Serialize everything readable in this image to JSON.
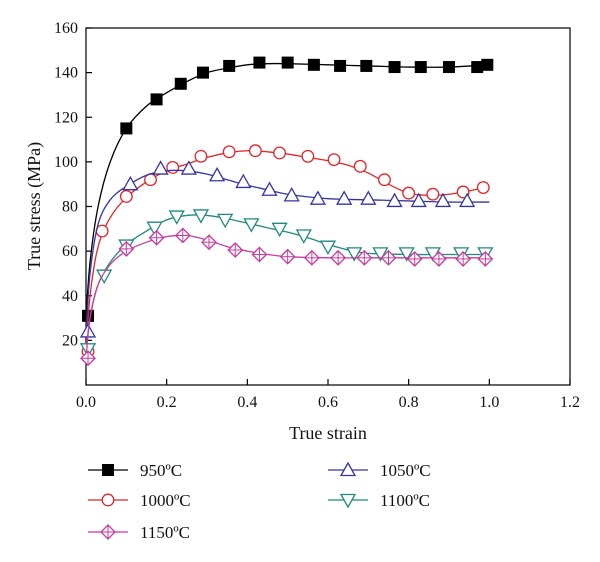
{
  "chart_data": {
    "type": "line",
    "xlabel": "True strain",
    "ylabel": "True stress (MPa)",
    "xlim": [
      0.0,
      1.2
    ],
    "ylim": [
      0,
      160
    ],
    "xticks": [
      "0.0",
      "0.2",
      "0.4",
      "0.6",
      "0.8",
      "1.0",
      "1.2"
    ],
    "yticks": [
      "20",
      "40",
      "60",
      "80",
      "100",
      "120",
      "140",
      "160"
    ],
    "grid": false,
    "legend_position": "bottom",
    "series": [
      {
        "name": "950ºC",
        "color": "#000000",
        "marker": "filled-square",
        "curve": [
          [
            0,
            30
          ],
          [
            0.01,
            55
          ],
          [
            0.03,
            80
          ],
          [
            0.06,
            100
          ],
          [
            0.1,
            115
          ],
          [
            0.15,
            125
          ],
          [
            0.2,
            131
          ],
          [
            0.25,
            136
          ],
          [
            0.3,
            140
          ],
          [
            0.35,
            142
          ],
          [
            0.4,
            143.5
          ],
          [
            0.45,
            144
          ],
          [
            0.5,
            144
          ],
          [
            0.6,
            143.5
          ],
          [
            0.7,
            143
          ],
          [
            0.8,
            142.5
          ],
          [
            0.9,
            142.5
          ],
          [
            1.0,
            143.5
          ]
        ],
        "points": [
          [
            0.005,
            31
          ],
          [
            0.1,
            115
          ],
          [
            0.175,
            128
          ],
          [
            0.235,
            135
          ],
          [
            0.29,
            140
          ],
          [
            0.355,
            143
          ],
          [
            0.43,
            144.5
          ],
          [
            0.5,
            144.5
          ],
          [
            0.565,
            143.5
          ],
          [
            0.63,
            143
          ],
          [
            0.695,
            143
          ],
          [
            0.765,
            142.5
          ],
          [
            0.83,
            142.5
          ],
          [
            0.9,
            142.5
          ],
          [
            0.97,
            142.5
          ],
          [
            0.995,
            143.5
          ]
        ]
      },
      {
        "name": "1000ºC",
        "color": "#e0262b",
        "marker": "open-circle",
        "curve": [
          [
            0,
            15
          ],
          [
            0.01,
            40
          ],
          [
            0.03,
            62
          ],
          [
            0.06,
            75
          ],
          [
            0.1,
            84
          ],
          [
            0.15,
            91
          ],
          [
            0.2,
            96
          ],
          [
            0.25,
            99
          ],
          [
            0.3,
            102
          ],
          [
            0.35,
            104
          ],
          [
            0.4,
            105
          ],
          [
            0.45,
            104.5
          ],
          [
            0.5,
            103.5
          ],
          [
            0.55,
            102
          ],
          [
            0.6,
            100.5
          ],
          [
            0.65,
            98.5
          ],
          [
            0.7,
            95
          ],
          [
            0.75,
            90
          ],
          [
            0.8,
            86
          ],
          [
            0.85,
            85
          ],
          [
            0.9,
            85.5
          ],
          [
            0.95,
            87
          ],
          [
            1.0,
            89
          ]
        ],
        "points": [
          [
            0.005,
            15
          ],
          [
            0.04,
            69
          ],
          [
            0.1,
            84.5
          ],
          [
            0.16,
            92
          ],
          [
            0.215,
            97.5
          ],
          [
            0.285,
            102.5
          ],
          [
            0.355,
            104.5
          ],
          [
            0.42,
            105
          ],
          [
            0.48,
            104
          ],
          [
            0.55,
            102.5
          ],
          [
            0.615,
            101
          ],
          [
            0.68,
            98
          ],
          [
            0.74,
            92
          ],
          [
            0.8,
            86
          ],
          [
            0.86,
            85.5
          ],
          [
            0.935,
            86.5
          ],
          [
            0.985,
            88.5
          ]
        ]
      },
      {
        "name": "1050ºC",
        "color": "#3535a4",
        "marker": "open-triangle-up",
        "curve": [
          [
            0,
            23
          ],
          [
            0.01,
            50
          ],
          [
            0.03,
            72
          ],
          [
            0.06,
            83
          ],
          [
            0.1,
            89
          ],
          [
            0.15,
            94
          ],
          [
            0.2,
            96
          ],
          [
            0.25,
            96
          ],
          [
            0.3,
            94.5
          ],
          [
            0.35,
            92
          ],
          [
            0.4,
            89.5
          ],
          [
            0.45,
            87.5
          ],
          [
            0.5,
            85.5
          ],
          [
            0.6,
            83.5
          ],
          [
            0.7,
            83
          ],
          [
            0.8,
            82.5
          ],
          [
            0.9,
            82
          ],
          [
            1.0,
            82
          ]
        ],
        "points": [
          [
            0.005,
            24
          ],
          [
            0.11,
            90
          ],
          [
            0.185,
            97
          ],
          [
            0.255,
            97
          ],
          [
            0.325,
            94
          ],
          [
            0.39,
            91
          ],
          [
            0.455,
            87.5
          ],
          [
            0.51,
            85
          ],
          [
            0.575,
            83.5
          ],
          [
            0.64,
            83.5
          ],
          [
            0.7,
            83.5
          ],
          [
            0.765,
            82.5
          ],
          [
            0.825,
            82.5
          ],
          [
            0.885,
            82.5
          ],
          [
            0.945,
            82.5
          ]
        ]
      },
      {
        "name": "1100ºC",
        "color": "#1f8a7d",
        "marker": "open-triangle-down",
        "curve": [
          [
            0,
            15
          ],
          [
            0.01,
            30
          ],
          [
            0.03,
            45
          ],
          [
            0.06,
            55
          ],
          [
            0.1,
            63
          ],
          [
            0.15,
            69
          ],
          [
            0.2,
            74
          ],
          [
            0.25,
            76
          ],
          [
            0.3,
            76
          ],
          [
            0.35,
            74.5
          ],
          [
            0.4,
            72.5
          ],
          [
            0.45,
            70.5
          ],
          [
            0.5,
            68.5
          ],
          [
            0.55,
            66
          ],
          [
            0.6,
            63
          ],
          [
            0.65,
            60.5
          ],
          [
            0.7,
            59
          ],
          [
            0.8,
            58.5
          ],
          [
            0.9,
            58.5
          ],
          [
            1.0,
            58.5
          ]
        ],
        "points": [
          [
            0.005,
            16
          ],
          [
            0.045,
            49
          ],
          [
            0.1,
            62.5
          ],
          [
            0.17,
            70.5
          ],
          [
            0.225,
            75.5
          ],
          [
            0.285,
            76
          ],
          [
            0.345,
            74
          ],
          [
            0.41,
            72
          ],
          [
            0.48,
            70
          ],
          [
            0.54,
            67
          ],
          [
            0.6,
            62
          ],
          [
            0.665,
            59
          ],
          [
            0.73,
            59
          ],
          [
            0.795,
            59
          ],
          [
            0.86,
            59
          ],
          [
            0.93,
            59
          ],
          [
            0.99,
            59
          ]
        ]
      },
      {
        "name": "1150ºC",
        "color": "#c53b9f",
        "marker": "open-diamond-plus",
        "curve": [
          [
            0,
            12
          ],
          [
            0.01,
            30
          ],
          [
            0.03,
            45
          ],
          [
            0.06,
            54
          ],
          [
            0.1,
            60
          ],
          [
            0.15,
            64
          ],
          [
            0.2,
            66.5
          ],
          [
            0.25,
            67
          ],
          [
            0.3,
            65
          ],
          [
            0.35,
            62
          ],
          [
            0.4,
            60
          ],
          [
            0.45,
            58.5
          ],
          [
            0.5,
            57.5
          ],
          [
            0.6,
            57
          ],
          [
            0.7,
            57
          ],
          [
            0.8,
            57
          ],
          [
            0.9,
            57
          ],
          [
            1.0,
            57
          ]
        ],
        "points": [
          [
            0.005,
            12
          ],
          [
            0.1,
            61
          ],
          [
            0.175,
            66
          ],
          [
            0.24,
            67
          ],
          [
            0.305,
            64
          ],
          [
            0.37,
            60.5
          ],
          [
            0.43,
            58.5
          ],
          [
            0.5,
            57.5
          ],
          [
            0.56,
            57
          ],
          [
            0.625,
            57
          ],
          [
            0.69,
            57
          ],
          [
            0.75,
            57
          ],
          [
            0.815,
            56.5
          ],
          [
            0.875,
            56.5
          ],
          [
            0.935,
            56.5
          ],
          [
            0.99,
            56.5
          ]
        ]
      }
    ]
  }
}
